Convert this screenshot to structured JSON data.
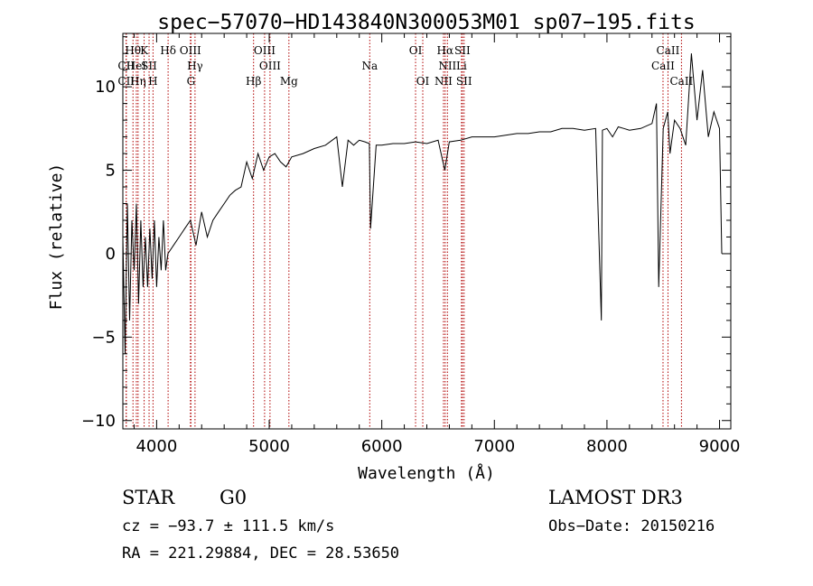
{
  "chart_data": {
    "type": "line",
    "title": "spec−57070−HD143840N300053M01_sp07−195.fits",
    "xlabel": "Wavelength (Å)",
    "ylabel": "Flux (relative)",
    "xlim": [
      3700,
      9100
    ],
    "ylim": [
      -10.5,
      13.2
    ],
    "xticks": [
      4000,
      5000,
      6000,
      7000,
      8000,
      9000
    ],
    "yticks": [
      -10,
      -5,
      0,
      5,
      10
    ],
    "grid": false,
    "series": [
      {
        "name": "flux",
        "x": [
          3700,
          3720,
          3740,
          3760,
          3780,
          3800,
          3820,
          3840,
          3860,
          3880,
          3900,
          3920,
          3940,
          3960,
          3980,
          4000,
          4020,
          4040,
          4060,
          4080,
          4100,
          4150,
          4200,
          4250,
          4300,
          4350,
          4400,
          4450,
          4500,
          4550,
          4600,
          4650,
          4700,
          4750,
          4800,
          4850,
          4900,
          4950,
          5000,
          5050,
          5100,
          5150,
          5200,
          5300,
          5400,
          5500,
          5600,
          5650,
          5700,
          5750,
          5800,
          5850,
          5890,
          5900,
          5950,
          6000,
          6100,
          6200,
          6300,
          6400,
          6500,
          6560,
          6600,
          6700,
          6800,
          6900,
          7000,
          7100,
          7200,
          7300,
          7400,
          7500,
          7600,
          7700,
          7800,
          7900,
          7950,
          7960,
          8000,
          8050,
          8100,
          8150,
          8200,
          8300,
          8400,
          8440,
          8460,
          8500,
          8540,
          8560,
          8600,
          8650,
          8700,
          8750,
          8800,
          8850,
          8900,
          8950,
          9000,
          9020
        ],
        "y": [
          1,
          -6,
          3,
          -4,
          2,
          -1,
          3,
          -3,
          2,
          -2,
          1,
          -2,
          1.5,
          -1.5,
          2,
          -2,
          1,
          -1,
          2,
          -1,
          0,
          0.5,
          1,
          1.5,
          2,
          0.5,
          2.5,
          1,
          2,
          2.5,
          3,
          3.5,
          3.8,
          4,
          5.5,
          4.5,
          6,
          5,
          5.8,
          6,
          5.5,
          5.2,
          5.8,
          6,
          6.3,
          6.5,
          7,
          4,
          6.8,
          6.5,
          6.8,
          6.7,
          6.6,
          1.5,
          6.5,
          6.5,
          6.6,
          6.6,
          6.7,
          6.6,
          6.8,
          5,
          6.7,
          6.8,
          7,
          7,
          7,
          7.1,
          7.2,
          7.2,
          7.3,
          7.3,
          7.5,
          7.5,
          7.4,
          7.5,
          -4,
          7.4,
          7.5,
          7,
          7.6,
          7.5,
          7.4,
          7.5,
          7.8,
          9,
          -2,
          7.5,
          8.5,
          6,
          8,
          7.5,
          6.5,
          12,
          8,
          11,
          7,
          8.5,
          7.5,
          0
        ]
      }
    ],
    "lines": [
      {
        "name": "CII",
        "wl": 3730,
        "row": 1
      },
      {
        "name": "CII",
        "wl": 3730,
        "row": 2
      },
      {
        "name": "Hθ",
        "wl": 3790,
        "row": 0
      },
      {
        "name": "HeI",
        "wl": 3820,
        "row": 1
      },
      {
        "name": "Hη",
        "wl": 3835,
        "row": 2
      },
      {
        "name": "K",
        "wl": 3889,
        "row": 0
      },
      {
        "name": "SII",
        "wl": 3933,
        "row": 1
      },
      {
        "name": "H",
        "wl": 3968,
        "row": 2
      },
      {
        "name": "Hδ",
        "wl": 4102,
        "row": 0
      },
      {
        "name": "OIII",
        "wl": 4300,
        "row": 0
      },
      {
        "name": "Hγ",
        "wl": 4341,
        "row": 1
      },
      {
        "name": "G",
        "wl": 4305,
        "row": 2
      },
      {
        "name": "Hβ",
        "wl": 4861,
        "row": 2
      },
      {
        "name": "OIII",
        "wl": 4959,
        "row": 0
      },
      {
        "name": "OIII",
        "wl": 5007,
        "row": 1
      },
      {
        "name": "Mg",
        "wl": 5175,
        "row": 2
      },
      {
        "name": "Na",
        "wl": 5893,
        "row": 1
      },
      {
        "name": "OI",
        "wl": 6300,
        "row": 0
      },
      {
        "name": "OI",
        "wl": 6364,
        "row": 2
      },
      {
        "name": "Hα",
        "wl": 6563,
        "row": 0
      },
      {
        "name": "NII",
        "wl": 6583,
        "row": 1
      },
      {
        "name": "NII",
        "wl": 6548,
        "row": 2
      },
      {
        "name": "SII",
        "wl": 6716,
        "row": 0
      },
      {
        "name": "Li",
        "wl": 6708,
        "row": 1
      },
      {
        "name": "SII",
        "wl": 6731,
        "row": 2
      },
      {
        "name": "CaII",
        "wl": 8542,
        "row": 0
      },
      {
        "name": "CaII",
        "wl": 8498,
        "row": 1
      },
      {
        "name": "CaII",
        "wl": 8662,
        "row": 2
      }
    ]
  },
  "info": {
    "class": "STAR",
    "subclass": "G0",
    "survey": "LAMOST DR3",
    "cz": "cz = −93.7 ± 111.5 km/s",
    "obsdate": "Obs−Date: 20150216",
    "radec": "RA = 221.29884, DEC =  28.53650"
  }
}
